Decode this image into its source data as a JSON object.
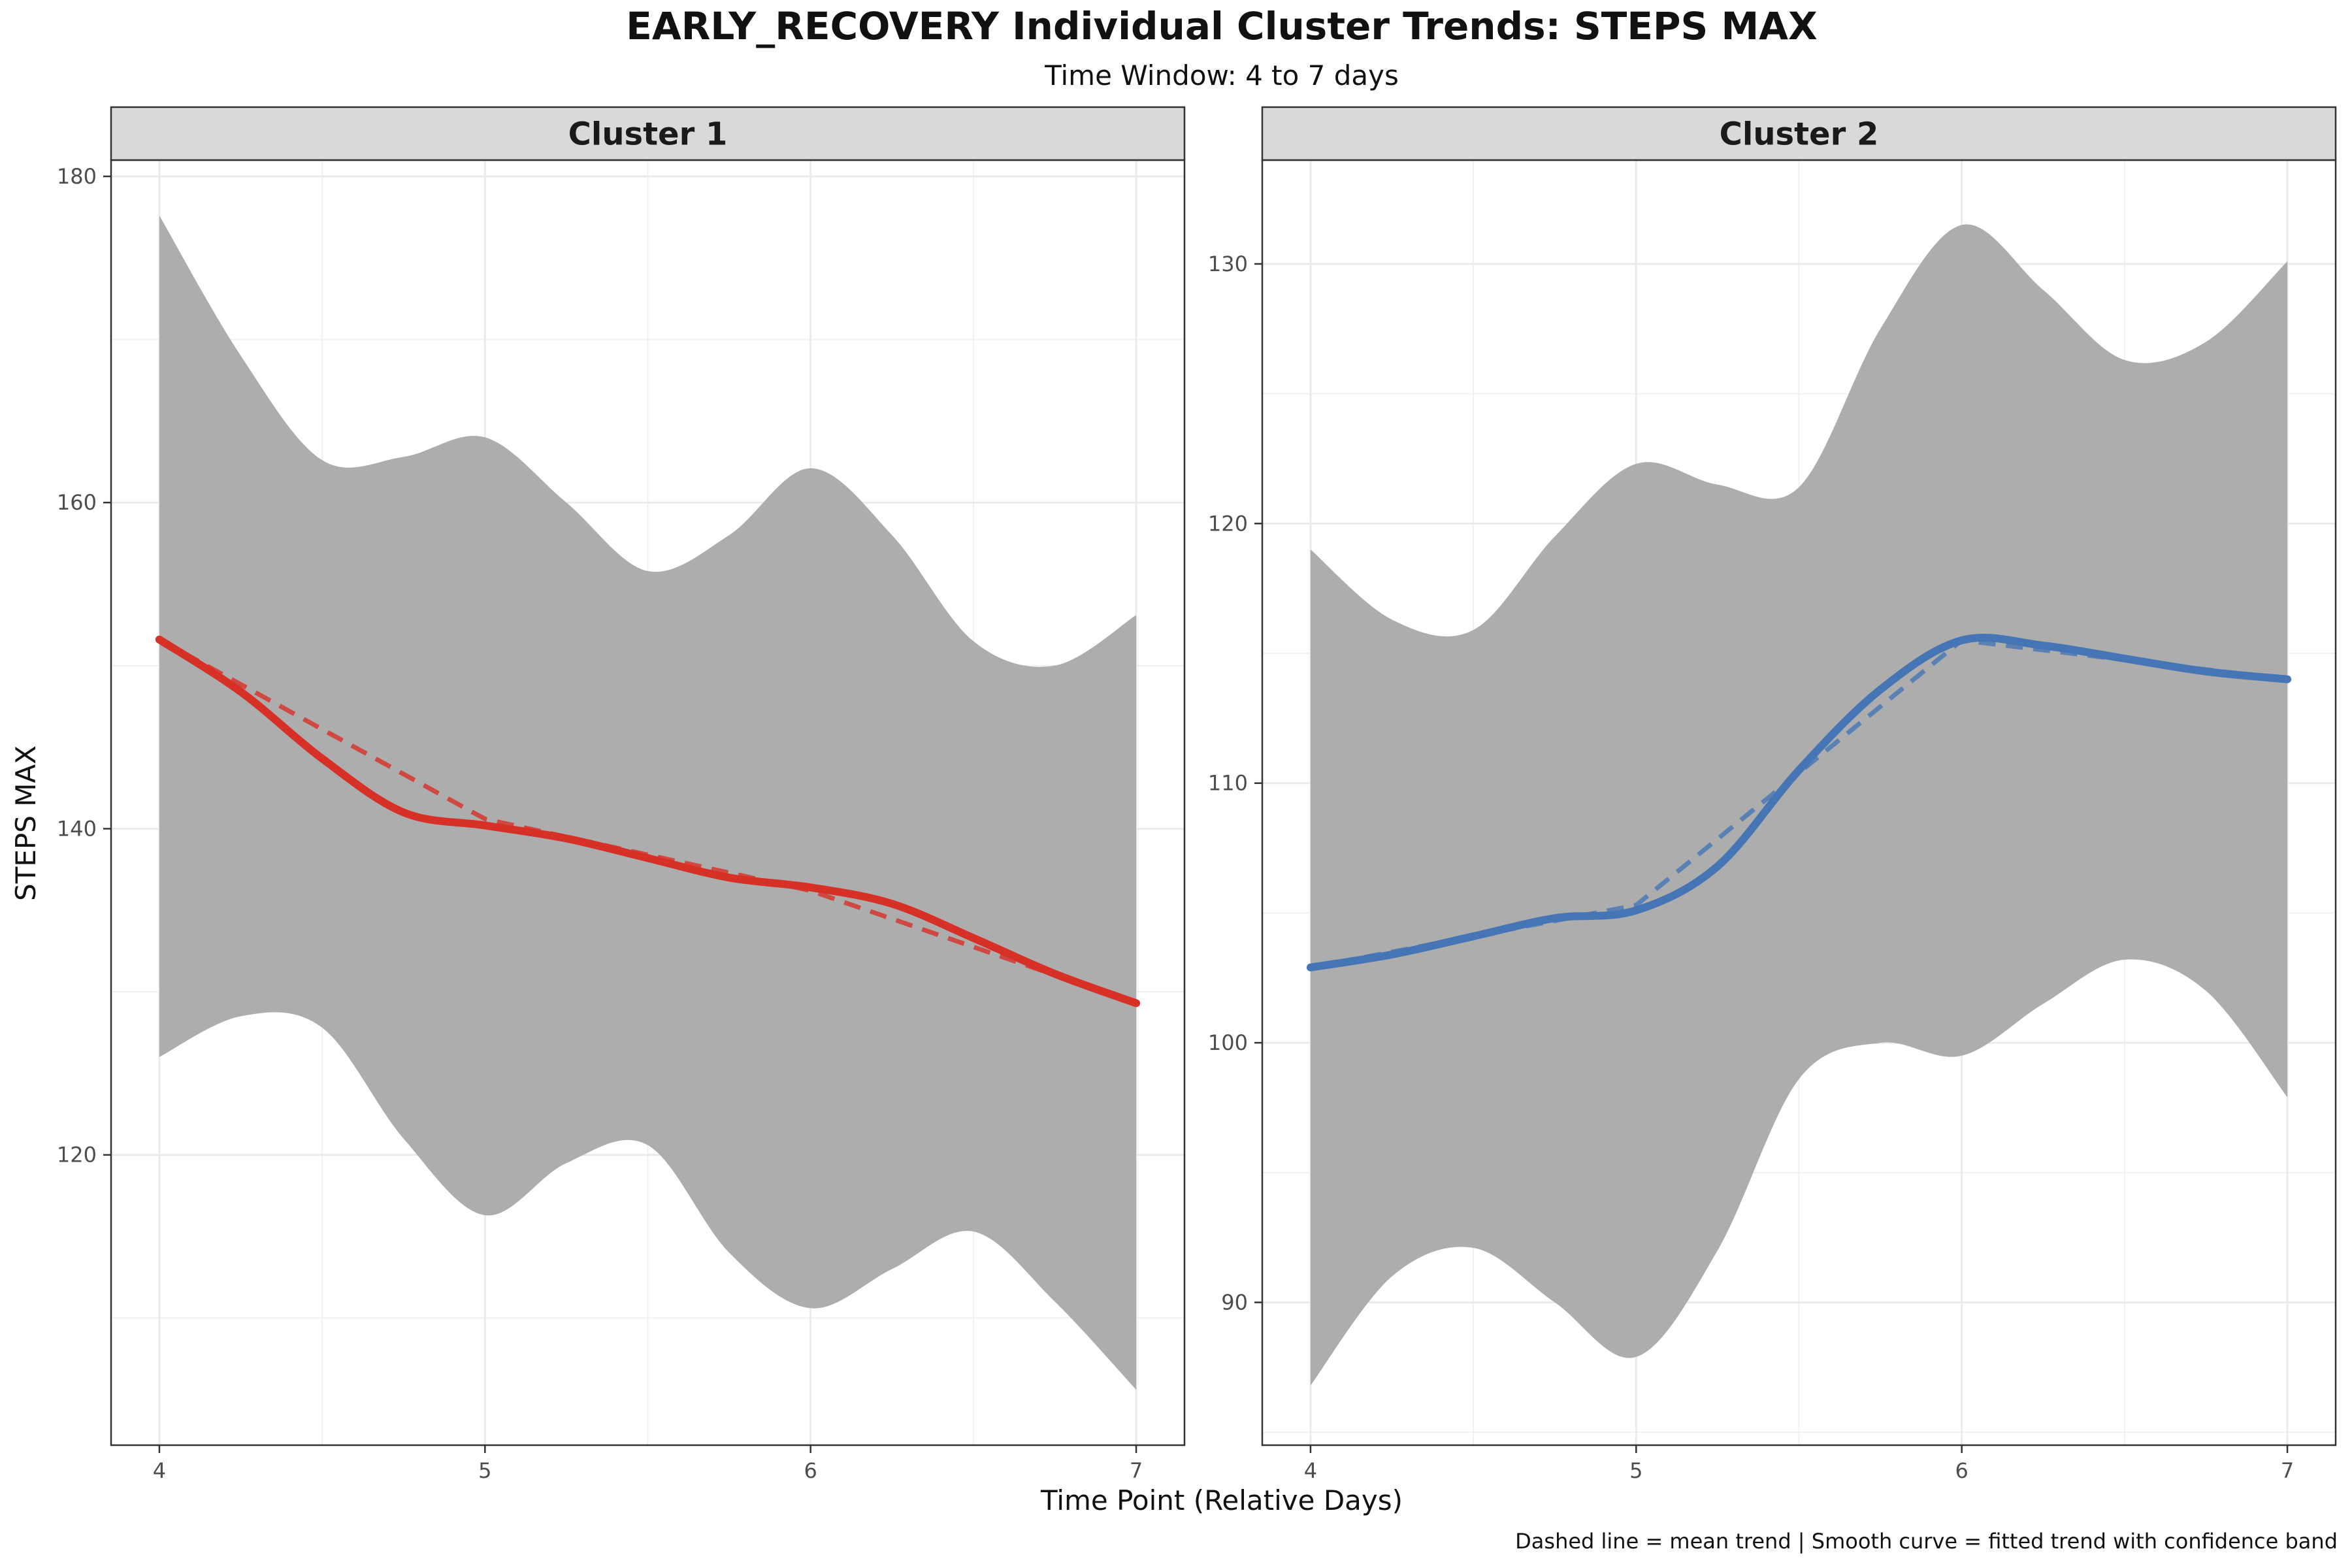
{
  "title": "EARLY_RECOVERY Individual Cluster Trends: STEPS MAX",
  "subtitle": "Time Window: 4 to 7 days",
  "xlabel": "Time Point (Relative Days)",
  "ylabel": "STEPS MAX",
  "caption": "Dashed line = mean trend | Smooth curve = fitted trend with confidence band",
  "chart_data": [
    {
      "type": "line",
      "panel": "Cluster 1",
      "color": "#d73027",
      "band_color": "#adadad",
      "xlim": [
        4,
        7
      ],
      "ylim": [
        102.2,
        181
      ],
      "x_ticks": [
        4,
        5,
        6,
        7
      ],
      "y_ticks": [
        120,
        140,
        160,
        180
      ],
      "mean_trend": {
        "x": [
          4,
          5,
          6,
          7
        ],
        "y": [
          151.6,
          140.6,
          136.2,
          129.3
        ]
      },
      "fitted_trend": {
        "x": [
          4,
          4.25,
          4.5,
          4.75,
          5,
          5.25,
          5.5,
          5.75,
          6,
          6.25,
          6.5,
          6.75,
          7
        ],
        "y": [
          151.6,
          148.4,
          144.3,
          141.0,
          140.2,
          139.4,
          138.2,
          137.0,
          136.4,
          135.4,
          133.3,
          131.1,
          129.3
        ]
      },
      "band": {
        "x": [
          4,
          4.25,
          4.5,
          4.75,
          5,
          5.25,
          5.5,
          5.75,
          6,
          6.25,
          6.5,
          6.75,
          7
        ],
        "lower": [
          126.0,
          128.5,
          127.8,
          121.0,
          116.3,
          119.5,
          120.6,
          114.0,
          110.6,
          113.0,
          115.3,
          111.0,
          105.6
        ],
        "upper": [
          177.6,
          169.0,
          162.6,
          162.8,
          164.0,
          160.0,
          155.8,
          158.0,
          162.1,
          158.0,
          151.5,
          150.0,
          153.1
        ]
      }
    },
    {
      "type": "line",
      "panel": "Cluster 2",
      "color": "#4575b4",
      "band_color": "#adadad",
      "xlim": [
        4,
        7
      ],
      "ylim": [
        84.5,
        134
      ],
      "x_ticks": [
        4,
        5,
        6,
        7
      ],
      "y_ticks": [
        90,
        100,
        110,
        120,
        130
      ],
      "mean_trend": {
        "x": [
          4,
          5,
          6,
          7
        ],
        "y": [
          102.9,
          105.3,
          115.5,
          114.0
        ]
      },
      "fitted_trend": {
        "x": [
          4,
          4.25,
          4.5,
          4.75,
          5,
          5.25,
          5.5,
          5.75,
          6,
          6.25,
          6.5,
          6.75,
          7
        ],
        "y": [
          102.9,
          103.4,
          104.1,
          104.8,
          105.1,
          106.8,
          110.5,
          113.6,
          115.5,
          115.3,
          114.8,
          114.3,
          114.0
        ]
      },
      "band": {
        "x": [
          4,
          4.25,
          4.5,
          4.75,
          5,
          5.25,
          5.5,
          5.75,
          6,
          6.25,
          6.5,
          6.75,
          7
        ],
        "lower": [
          86.8,
          91.0,
          92.1,
          90.0,
          87.9,
          92.0,
          98.6,
          100.0,
          99.5,
          101.5,
          103.2,
          102.0,
          97.9
        ],
        "upper": [
          119.0,
          116.3,
          115.9,
          119.5,
          122.3,
          121.5,
          121.4,
          127.5,
          131.5,
          129.0,
          126.3,
          127.0,
          130.1
        ]
      }
    }
  ]
}
